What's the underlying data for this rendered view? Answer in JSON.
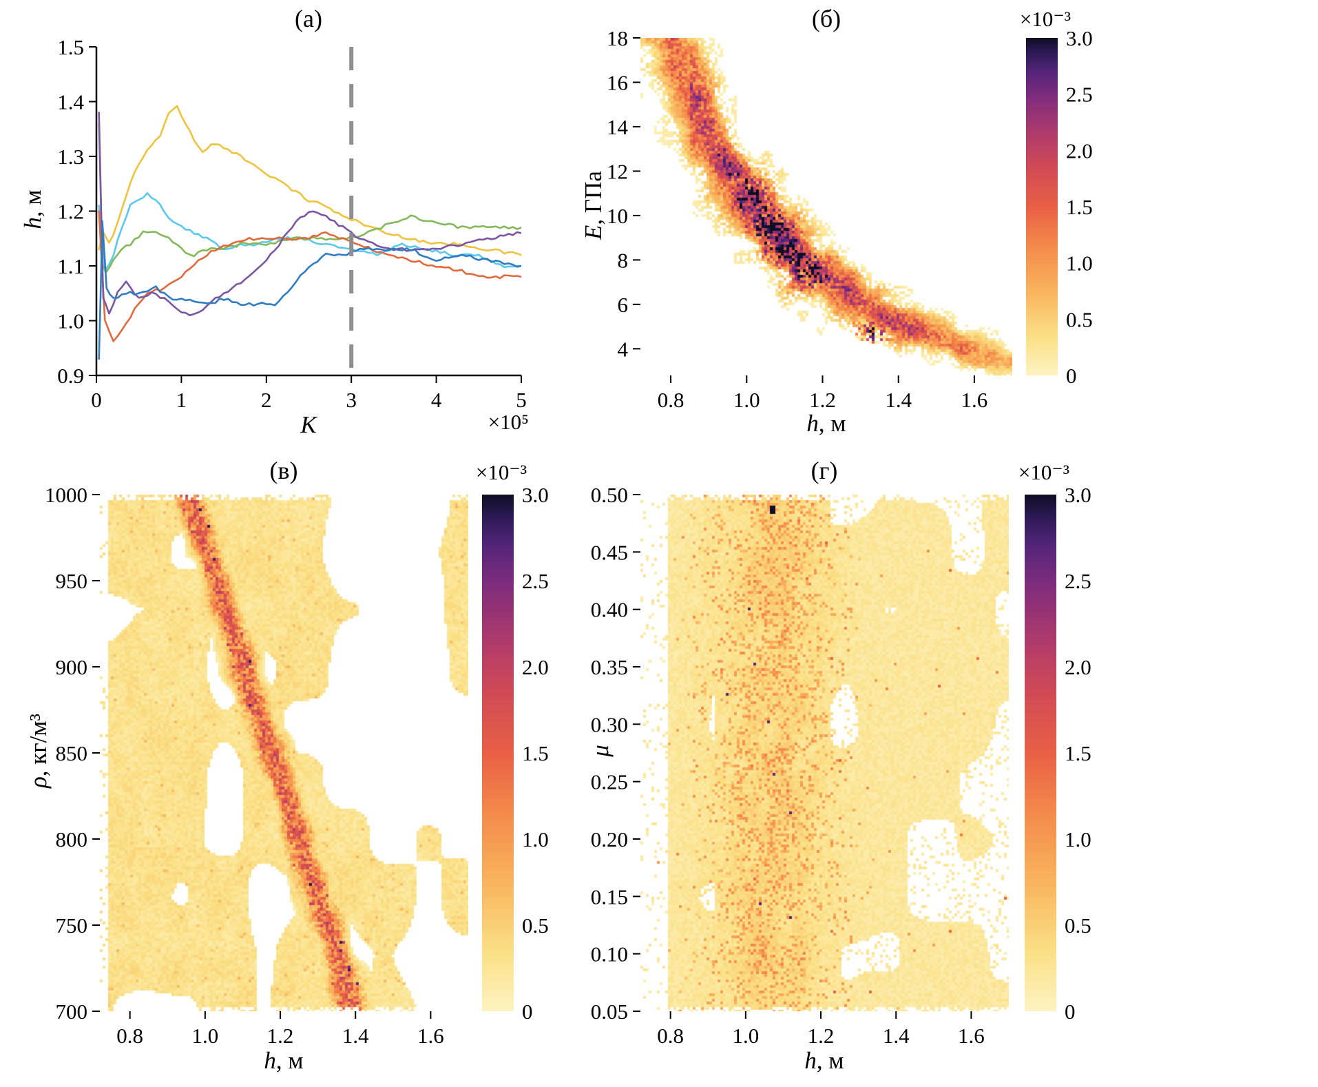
{
  "figure": {
    "background": "#ffffff",
    "description": "Four-panel figure: MCMC chain traces of h vs iteration K, and 2D posterior density histograms of E, rho and mu versus h"
  },
  "colormap": {
    "name": "light-yellow to orange to red to purple to black (inferno reversed style)",
    "stops": [
      [
        0,
        "#fdf3c2"
      ],
      [
        0.12,
        "#fbdf84"
      ],
      [
        0.25,
        "#f9b45e"
      ],
      [
        0.38,
        "#f48c4b"
      ],
      [
        0.5,
        "#e96045"
      ],
      [
        0.62,
        "#d04a56"
      ],
      [
        0.72,
        "#ae3a6c"
      ],
      [
        0.82,
        "#832d7c"
      ],
      [
        0.9,
        "#55257a"
      ],
      [
        0.96,
        "#2b1a55"
      ],
      [
        1,
        "#0e0e24"
      ]
    ]
  },
  "chart_data": [
    {
      "type": "line",
      "title": "(а)",
      "xlabel_var": "K",
      "xlabel_unit": "",
      "x_scale_label": "×10⁵",
      "ylabel_var": "h",
      "ylabel_unit": ", м",
      "xlim": [
        0,
        5
      ],
      "ylim": [
        0.9,
        1.5
      ],
      "xtick_values": [
        0,
        1,
        2,
        3,
        4,
        5
      ],
      "xtick_labels": [
        "0",
        "1",
        "2",
        "3",
        "4",
        "5"
      ],
      "ytick_values": [
        0.9,
        1.0,
        1.1,
        1.2,
        1.3,
        1.4,
        1.5
      ],
      "ytick_labels": [
        "0.9",
        "1.0",
        "1.1",
        "1.2",
        "1.3",
        "1.4",
        "1.5"
      ],
      "grid": false,
      "vline": {
        "x": 3,
        "color": "#8f8f8f",
        "style": "dashed",
        "width": 6
      },
      "series": [
        {
          "name": "chain-yellow",
          "color": "#eec33d",
          "x": [
            0.03,
            0.08,
            0.15,
            0.25,
            0.35,
            0.45,
            0.55,
            0.65,
            0.75,
            0.85,
            0.95,
            1.05,
            1.15,
            1.25,
            1.35,
            1.45,
            1.55,
            1.7,
            1.9,
            2.1,
            2.3,
            2.5,
            2.7,
            2.9,
            3.1,
            3.4,
            3.7,
            4.0,
            4.3,
            4.6,
            5.0
          ],
          "y": [
            1.13,
            1.16,
            1.14,
            1.18,
            1.23,
            1.27,
            1.3,
            1.32,
            1.34,
            1.38,
            1.39,
            1.36,
            1.33,
            1.31,
            1.32,
            1.32,
            1.31,
            1.3,
            1.28,
            1.26,
            1.24,
            1.22,
            1.21,
            1.19,
            1.18,
            1.16,
            1.15,
            1.14,
            1.14,
            1.13,
            1.12
          ]
        },
        {
          "name": "chain-cyan",
          "color": "#5bc8ee",
          "x": [
            0.03,
            0.1,
            0.2,
            0.3,
            0.4,
            0.5,
            0.6,
            0.7,
            0.85,
            1.0,
            1.15,
            1.3,
            1.5,
            1.7,
            1.9,
            2.1,
            2.4,
            2.7,
            3.0,
            3.3,
            3.6,
            3.9,
            4.2,
            4.5,
            4.8,
            5.0
          ],
          "y": [
            1.21,
            1.09,
            1.12,
            1.17,
            1.21,
            1.22,
            1.23,
            1.22,
            1.19,
            1.17,
            1.16,
            1.15,
            1.13,
            1.14,
            1.14,
            1.15,
            1.15,
            1.14,
            1.13,
            1.12,
            1.14,
            1.13,
            1.12,
            1.12,
            1.1,
            1.1
          ]
        },
        {
          "name": "chain-green",
          "color": "#83b958",
          "x": [
            0.03,
            0.07,
            0.12,
            0.2,
            0.3,
            0.4,
            0.55,
            0.7,
            0.85,
            1.0,
            1.15,
            1.3,
            1.5,
            1.7,
            2.0,
            2.3,
            2.6,
            2.9,
            3.2,
            3.5,
            3.7,
            4.0,
            4.3,
            4.6,
            5.0
          ],
          "y": [
            1.36,
            1.1,
            1.09,
            1.11,
            1.13,
            1.14,
            1.16,
            1.16,
            1.15,
            1.13,
            1.12,
            1.13,
            1.13,
            1.14,
            1.14,
            1.15,
            1.15,
            1.15,
            1.16,
            1.18,
            1.19,
            1.18,
            1.17,
            1.17,
            1.17
          ]
        },
        {
          "name": "chain-orange",
          "color": "#e06a3b",
          "x": [
            0.03,
            0.1,
            0.2,
            0.3,
            0.45,
            0.6,
            0.8,
            1.0,
            1.2,
            1.4,
            1.6,
            1.8,
            2.0,
            2.2,
            2.5,
            2.7,
            2.9,
            3.1,
            3.4,
            3.7,
            4.0,
            4.3,
            4.6,
            5.0
          ],
          "y": [
            1.2,
            1.0,
            0.96,
            0.98,
            1.02,
            1.05,
            1.06,
            1.08,
            1.11,
            1.13,
            1.14,
            1.15,
            1.15,
            1.15,
            1.15,
            1.16,
            1.15,
            1.14,
            1.12,
            1.11,
            1.1,
            1.09,
            1.08,
            1.08
          ]
        },
        {
          "name": "chain-purple",
          "color": "#7a56a3",
          "x": [
            0.03,
            0.08,
            0.15,
            0.25,
            0.35,
            0.5,
            0.65,
            0.8,
            0.95,
            1.1,
            1.25,
            1.4,
            1.6,
            1.8,
            2.0,
            2.2,
            2.4,
            2.55,
            2.7,
            2.9,
            3.1,
            3.4,
            3.7,
            4.0,
            4.3,
            4.6,
            5.0
          ],
          "y": [
            1.38,
            1.04,
            1.01,
            1.05,
            1.07,
            1.04,
            1.05,
            1.04,
            1.02,
            1.01,
            1.02,
            1.04,
            1.06,
            1.08,
            1.11,
            1.15,
            1.19,
            1.2,
            1.19,
            1.17,
            1.15,
            1.13,
            1.13,
            1.13,
            1.14,
            1.15,
            1.16
          ]
        },
        {
          "name": "chain-blue",
          "color": "#2f7cc0",
          "x": [
            0.03,
            0.07,
            0.12,
            0.2,
            0.35,
            0.5,
            0.7,
            0.9,
            1.1,
            1.3,
            1.5,
            1.7,
            1.9,
            2.1,
            2.3,
            2.5,
            2.7,
            2.9,
            3.1,
            3.4,
            3.7,
            4.0,
            4.3,
            4.6,
            5.0
          ],
          "y": [
            0.93,
            1.18,
            1.06,
            1.04,
            1.05,
            1.05,
            1.06,
            1.04,
            1.04,
            1.03,
            1.04,
            1.03,
            1.03,
            1.03,
            1.06,
            1.1,
            1.12,
            1.12,
            1.13,
            1.13,
            1.13,
            1.11,
            1.12,
            1.11,
            1.1
          ]
        }
      ]
    },
    {
      "type": "heatmap",
      "title": "(б)",
      "xlabel_var": "h",
      "xlabel_unit": ", м",
      "ylabel_var": "E",
      "ylabel_unit": ", ГПа",
      "xlim": [
        0.72,
        1.7
      ],
      "ylim": [
        2.8,
        18
      ],
      "xtick_values": [
        0.8,
        1.0,
        1.2,
        1.4,
        1.6
      ],
      "xtick_labels": [
        "0.8",
        "1.0",
        "1.2",
        "1.4",
        "1.6"
      ],
      "ytick_values": [
        4,
        6,
        8,
        10,
        12,
        14,
        16,
        18
      ],
      "ytick_labels": [
        "4",
        "6",
        "8",
        "10",
        "12",
        "14",
        "16",
        "18"
      ],
      "colorbar": {
        "label": "×10⁻³",
        "vmin": 0,
        "vmax": 3,
        "tick_values": [
          0,
          0.5,
          1.0,
          1.5,
          2.0,
          2.5,
          3.0
        ],
        "tick_labels": [
          "0",
          "0.5",
          "1.0",
          "1.5",
          "2.0",
          "2.5",
          "3.0"
        ]
      },
      "band": {
        "model": "power",
        "equation": "E ≈ 11·h^(−2.2)",
        "a": 11,
        "b": -2.2,
        "rel_width": 0.1,
        "hotspots": [
          {
            "h": 1.06,
            "E": 10,
            "note": "densest dark cluster E≈8–12"
          },
          {
            "h": 1.16,
            "E": 7.5
          },
          {
            "h": 1.33,
            "E": 4.7
          }
        ]
      },
      "background": "white"
    },
    {
      "type": "heatmap",
      "title": "(в)",
      "xlabel_var": "h",
      "xlabel_unit": ", м",
      "ylabel_var": "ρ",
      "ylabel_unit": ", кг/м³",
      "xlim": [
        0.72,
        1.7
      ],
      "ylim": [
        700,
        1000
      ],
      "xtick_values": [
        0.8,
        1.0,
        1.2,
        1.4,
        1.6
      ],
      "xtick_labels": [
        "0.8",
        "1.0",
        "1.2",
        "1.4",
        "1.6"
      ],
      "ytick_values": [
        700,
        750,
        800,
        850,
        900,
        950,
        1000
      ],
      "ytick_labels": [
        "700",
        "750",
        "800",
        "850",
        "900",
        "950",
        "1000"
      ],
      "colorbar": {
        "label": "×10⁻³",
        "vmin": 0,
        "vmax": 3,
        "tick_values": [
          0,
          0.5,
          1.0,
          1.5,
          2.0,
          2.5,
          3.0
        ],
        "tick_labels": [
          "0",
          "0.5",
          "1.0",
          "1.5",
          "2.0",
          "2.5",
          "3.0"
        ]
      },
      "band": {
        "model": "linear",
        "equation": "ρ ≈ 1650 − 680·h",
        "intercept": 1650,
        "slope": -680,
        "width": 16,
        "note": "diagonal red ridge from (h≈0.95, ρ≈1000) to (h≈1.4, ρ≈700) over pale speckled background with white patches at larger h"
      },
      "background": "speckle"
    },
    {
      "type": "heatmap",
      "title": "(г)",
      "xlabel_var": "h",
      "xlabel_unit": ", м",
      "ylabel_var": "μ",
      "ylabel_unit": "",
      "xlim": [
        0.72,
        1.7
      ],
      "ylim": [
        0.05,
        0.5
      ],
      "xtick_values": [
        0.8,
        1.0,
        1.2,
        1.4,
        1.6
      ],
      "xtick_labels": [
        "0.8",
        "1.0",
        "1.2",
        "1.4",
        "1.6"
      ],
      "ytick_values": [
        0.05,
        0.1,
        0.15,
        0.2,
        0.25,
        0.3,
        0.35,
        0.4,
        0.45,
        0.5
      ],
      "ytick_labels": [
        "0.05",
        "0.10",
        "0.15",
        "0.20",
        "0.25",
        "0.30",
        "0.35",
        "0.40",
        "0.45",
        "0.50"
      ],
      "colorbar": {
        "label": "×10⁻³",
        "vmin": 0,
        "vmax": 3,
        "tick_values": [
          0,
          0.5,
          1.0,
          1.5,
          2.0,
          2.5,
          3.0
        ],
        "tick_labels": [
          "0",
          "0.5",
          "1.0",
          "1.5",
          "2.0",
          "2.5",
          "3.0"
        ]
      },
      "band": {
        "model": "vertical",
        "center": 1.07,
        "width": 0.14,
        "note": "diffuse vertical concentration near h≈1.0–1.2 spanning all μ; darkest single cell near h≈1.07, μ≈0.49"
      },
      "background": "speckle"
    }
  ]
}
